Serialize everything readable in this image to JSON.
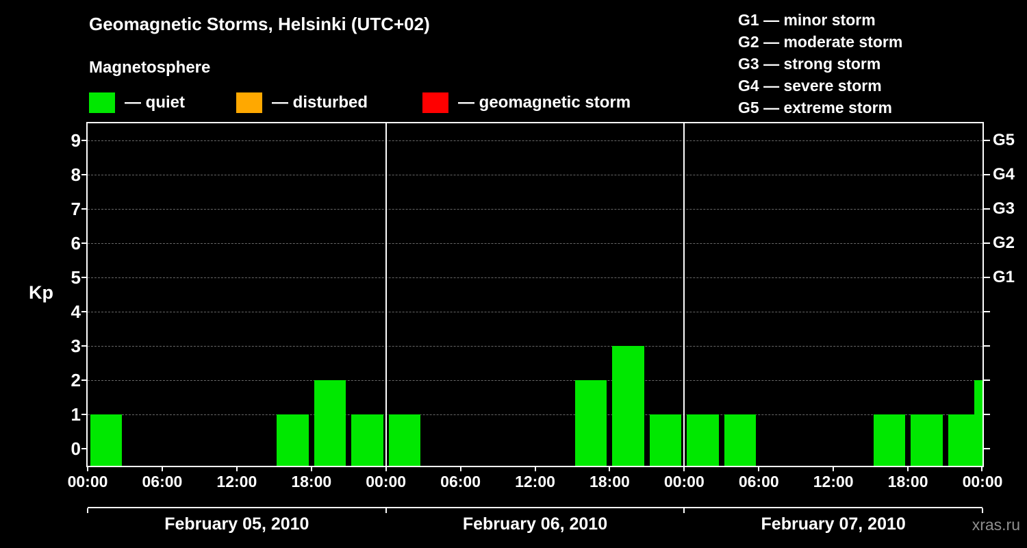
{
  "header": {
    "title": "Geomagnetic Storms, Helsinki (UTC+02)",
    "subtitle": "Magnetosphere",
    "legend": [
      {
        "label": "— quiet",
        "color": "#00e800"
      },
      {
        "label": "— disturbed",
        "color": "#ffa800"
      },
      {
        "label": "— geomagnetic storm",
        "color": "#ff0000"
      }
    ],
    "g_scale": [
      "G1 — minor storm",
      "G2 — moderate storm",
      "G3 — strong storm",
      "G4 — severe storm",
      "G5 — extreme storm"
    ]
  },
  "chart_data": {
    "type": "bar",
    "title": "Geomagnetic Storms, Helsinki (UTC+02)",
    "ylabel": "Kp",
    "ylim": [
      0,
      9.5
    ],
    "y_ticks": [
      0,
      1,
      2,
      3,
      4,
      5,
      6,
      7,
      8,
      9
    ],
    "bar_color": "#00e800",
    "grid": "horizontal dashed gray lines at each Kp level 1-9",
    "hours_per_bar": 3,
    "x_tick_labels": [
      "00:00",
      "06:00",
      "12:00",
      "18:00"
    ],
    "x_final_label": "00:00",
    "right_axis": [
      {
        "label": "G1",
        "kp": 5
      },
      {
        "label": "G2",
        "kp": 6
      },
      {
        "label": "G3",
        "kp": 7
      },
      {
        "label": "G4",
        "kp": 8
      },
      {
        "label": "G5",
        "kp": 9
      }
    ],
    "days": [
      {
        "date": "February 05, 2010",
        "hours": [
          0,
          3,
          6,
          9,
          12,
          15,
          18,
          21
        ],
        "kp_by_3h": [
          1,
          0,
          0,
          0,
          0,
          1,
          2,
          1
        ]
      },
      {
        "date": "February 06, 2010",
        "hours": [
          0,
          3,
          6,
          9,
          12,
          15,
          18,
          21
        ],
        "kp_by_3h": [
          1,
          0,
          0,
          0,
          0,
          2,
          3,
          1
        ]
      },
      {
        "date": "February 07, 2010",
        "hours": [
          0,
          3,
          6,
          9,
          12,
          15,
          18,
          21
        ],
        "kp_by_3h": [
          1,
          1,
          0,
          0,
          0,
          1,
          1,
          1
        ]
      }
    ],
    "partial_next_interval_kp": 2
  },
  "footer": {
    "watermark": "xras.ru"
  }
}
